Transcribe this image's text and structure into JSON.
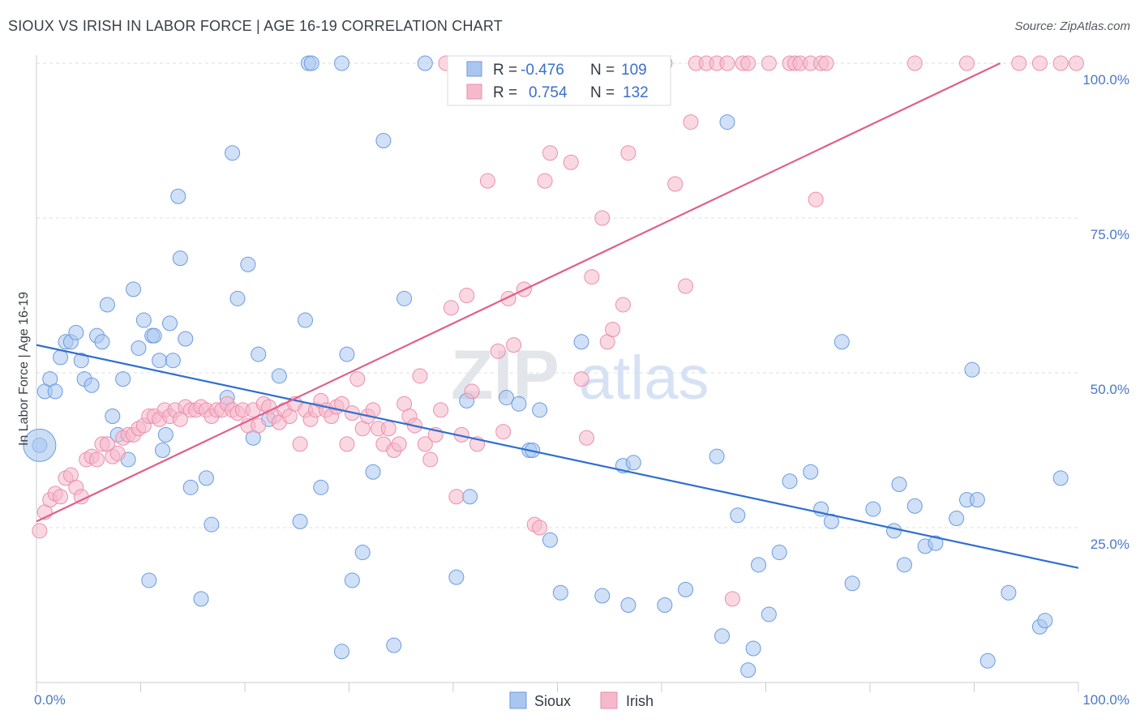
{
  "title": "SIOUX VS IRISH IN LABOR FORCE | AGE 16-19 CORRELATION CHART",
  "source": "Source: ZipAtlas.com",
  "watermark": {
    "zip": "ZIP",
    "atlas": "atlas"
  },
  "colors": {
    "sioux_fill": "#a9c6ef",
    "sioux_stroke": "#6b9be0",
    "sioux_line": "#2f6fcf",
    "irish_fill": "#f6b8cb",
    "irish_stroke": "#ea8fae",
    "irish_line": "#e0608a",
    "tick": "#4a78c4",
    "grid": "#dcdfe4"
  },
  "legend": {
    "rows": [
      {
        "r_label": "R =",
        "r_value": "-0.476",
        "n_label": "N =",
        "n_value": "109"
      },
      {
        "r_label": "R =",
        "r_value": "0.754",
        "n_label": "N =",
        "n_value": "132"
      }
    ]
  },
  "chart_data": {
    "type": "scatter",
    "xlabel": "",
    "ylabel": "In Labor Force | Age 16-19",
    "xlim": [
      0,
      100
    ],
    "ylim": [
      0,
      100
    ],
    "x_tick_labels": [
      "0.0%",
      "100.0%"
    ],
    "y_tick_labels": [
      "25.0%",
      "50.0%",
      "75.0%",
      "100.0%"
    ],
    "y_ticks": [
      25,
      50,
      75,
      100
    ],
    "grid": true,
    "legend_position": "top-center",
    "series": [
      {
        "name": "Sioux",
        "color": "#a9c6ef",
        "trend": {
          "x": [
            0,
            100
          ],
          "y": [
            54.5,
            18.5
          ]
        },
        "points": [
          [
            0.3,
            38.3
          ],
          [
            0.8,
            47
          ],
          [
            1.3,
            49
          ],
          [
            1.8,
            47
          ],
          [
            2.3,
            52.5
          ],
          [
            2.8,
            55
          ],
          [
            3.3,
            55
          ],
          [
            3.8,
            56.5
          ],
          [
            4.3,
            52
          ],
          [
            4.6,
            49
          ],
          [
            5.3,
            48
          ],
          [
            5.8,
            56
          ],
          [
            6.3,
            55
          ],
          [
            6.8,
            61
          ],
          [
            7.3,
            43
          ],
          [
            7.8,
            40
          ],
          [
            8.3,
            49
          ],
          [
            8.8,
            36
          ],
          [
            9.3,
            63.5
          ],
          [
            9.8,
            54
          ],
          [
            10.3,
            58.5
          ],
          [
            10.8,
            16.5
          ],
          [
            11.1,
            56
          ],
          [
            11.3,
            56
          ],
          [
            11.8,
            52
          ],
          [
            12.1,
            37.5
          ],
          [
            12.4,
            40
          ],
          [
            12.8,
            58
          ],
          [
            13.1,
            52
          ],
          [
            13.6,
            78.5
          ],
          [
            13.8,
            68.5
          ],
          [
            14.3,
            55.5
          ],
          [
            14.8,
            31.5
          ],
          [
            15.8,
            13.5
          ],
          [
            16.3,
            33
          ],
          [
            16.8,
            25.5
          ],
          [
            18.3,
            46
          ],
          [
            18.8,
            85.5
          ],
          [
            19.3,
            62
          ],
          [
            20.3,
            67.5
          ],
          [
            20.8,
            39.5
          ],
          [
            21.3,
            53
          ],
          [
            22.3,
            42.5
          ],
          [
            23.3,
            49.5
          ],
          [
            25.3,
            26
          ],
          [
            25.8,
            58.5
          ],
          [
            26.1,
            100
          ],
          [
            26.4,
            100
          ],
          [
            27.3,
            31.5
          ],
          [
            29.3,
            100
          ],
          [
            29.3,
            5
          ],
          [
            29.8,
            53
          ],
          [
            30.3,
            16.5
          ],
          [
            31.3,
            21
          ],
          [
            32.3,
            34
          ],
          [
            33.3,
            87.5
          ],
          [
            34.3,
            6
          ],
          [
            35.3,
            62
          ],
          [
            37.3,
            100
          ],
          [
            40.3,
            17
          ],
          [
            41.3,
            45.5
          ],
          [
            41.6,
            30
          ],
          [
            45.1,
            46
          ],
          [
            46.3,
            45
          ],
          [
            47.3,
            37.5
          ],
          [
            47.6,
            37.5
          ],
          [
            48.3,
            44
          ],
          [
            49.3,
            23
          ],
          [
            50.3,
            14.5
          ],
          [
            52.3,
            55
          ],
          [
            54.3,
            14
          ],
          [
            56.3,
            35
          ],
          [
            56.8,
            12.5
          ],
          [
            57.3,
            35.5
          ],
          [
            60.3,
            12.5
          ],
          [
            62.3,
            15
          ],
          [
            65.3,
            36.5
          ],
          [
            65.8,
            7.5
          ],
          [
            66.3,
            90.5
          ],
          [
            67.3,
            27
          ],
          [
            68.3,
            2
          ],
          [
            68.8,
            5.5
          ],
          [
            69.3,
            19
          ],
          [
            70.3,
            11
          ],
          [
            71.3,
            21
          ],
          [
            72.3,
            32.5
          ],
          [
            74.3,
            34
          ],
          [
            75.3,
            28
          ],
          [
            76.3,
            26
          ],
          [
            77.3,
            55
          ],
          [
            78.3,
            16
          ],
          [
            80.3,
            28
          ],
          [
            82.3,
            24.5
          ],
          [
            82.8,
            32
          ],
          [
            83.3,
            19
          ],
          [
            84.3,
            28.5
          ],
          [
            85.3,
            22
          ],
          [
            86.3,
            22.5
          ],
          [
            88.3,
            26.5
          ],
          [
            89.3,
            29.5
          ],
          [
            89.8,
            50.5
          ],
          [
            90.3,
            29.5
          ],
          [
            91.3,
            3.5
          ],
          [
            93.3,
            14.5
          ],
          [
            96.3,
            9
          ],
          [
            96.8,
            10
          ],
          [
            98.3,
            33
          ]
        ]
      },
      {
        "name": "Irish",
        "color": "#f6b8cb",
        "trend": {
          "x": [
            0,
            92.5
          ],
          "y": [
            26,
            100
          ]
        },
        "points": [
          [
            0.3,
            24.5
          ],
          [
            0.8,
            27.5
          ],
          [
            1.3,
            29.5
          ],
          [
            1.8,
            30.5
          ],
          [
            2.3,
            30
          ],
          [
            2.8,
            33
          ],
          [
            3.3,
            33.5
          ],
          [
            3.8,
            31.5
          ],
          [
            4.3,
            30
          ],
          [
            4.8,
            36
          ],
          [
            5.3,
            36.5
          ],
          [
            5.8,
            36
          ],
          [
            6.3,
            38.5
          ],
          [
            6.8,
            38.5
          ],
          [
            7.3,
            36.5
          ],
          [
            7.8,
            37
          ],
          [
            8.3,
            39.5
          ],
          [
            8.8,
            40
          ],
          [
            9.3,
            40
          ],
          [
            9.8,
            41
          ],
          [
            10.3,
            41.5
          ],
          [
            10.8,
            43
          ],
          [
            11.3,
            43
          ],
          [
            11.8,
            42.5
          ],
          [
            12.3,
            44
          ],
          [
            12.8,
            43
          ],
          [
            13.3,
            44
          ],
          [
            13.8,
            42.5
          ],
          [
            14.3,
            44.5
          ],
          [
            14.8,
            44
          ],
          [
            15.3,
            44
          ],
          [
            15.8,
            44.5
          ],
          [
            16.3,
            44
          ],
          [
            16.8,
            43
          ],
          [
            17.3,
            44
          ],
          [
            17.8,
            44
          ],
          [
            18.3,
            45
          ],
          [
            18.8,
            44
          ],
          [
            19.3,
            43.5
          ],
          [
            19.8,
            44
          ],
          [
            20.3,
            41.5
          ],
          [
            20.8,
            44
          ],
          [
            21.3,
            41.5
          ],
          [
            21.8,
            45
          ],
          [
            22.3,
            44.5
          ],
          [
            22.8,
            43
          ],
          [
            23.3,
            42
          ],
          [
            23.8,
            44
          ],
          [
            24.3,
            43
          ],
          [
            24.8,
            45
          ],
          [
            25.3,
            38.5
          ],
          [
            25.8,
            44
          ],
          [
            26.3,
            42.5
          ],
          [
            26.8,
            44
          ],
          [
            27.3,
            45.5
          ],
          [
            27.8,
            44
          ],
          [
            28.3,
            43
          ],
          [
            28.8,
            44.5
          ],
          [
            29.3,
            45
          ],
          [
            29.8,
            38.5
          ],
          [
            30.3,
            43.5
          ],
          [
            30.8,
            49
          ],
          [
            31.3,
            41
          ],
          [
            31.8,
            43
          ],
          [
            32.3,
            44
          ],
          [
            32.8,
            41
          ],
          [
            33.3,
            38.5
          ],
          [
            33.8,
            41
          ],
          [
            34.3,
            37.5
          ],
          [
            34.8,
            38.5
          ],
          [
            35.3,
            45
          ],
          [
            35.8,
            43
          ],
          [
            36.3,
            41.5
          ],
          [
            36.8,
            49.5
          ],
          [
            37.3,
            38.5
          ],
          [
            37.8,
            36
          ],
          [
            38.3,
            40
          ],
          [
            38.8,
            44
          ],
          [
            39.3,
            100
          ],
          [
            39.8,
            60.5
          ],
          [
            40.3,
            30
          ],
          [
            40.8,
            40
          ],
          [
            41.3,
            62.5
          ],
          [
            41.8,
            47
          ],
          [
            42.3,
            38.5
          ],
          [
            42.8,
            100
          ],
          [
            43.3,
            81
          ],
          [
            43.8,
            100
          ],
          [
            44.3,
            53.5
          ],
          [
            44.8,
            40.5
          ],
          [
            45.3,
            62
          ],
          [
            45.8,
            54.5
          ],
          [
            46.3,
            100
          ],
          [
            46.8,
            63.5
          ],
          [
            47.3,
            100
          ],
          [
            47.8,
            25.5
          ],
          [
            48.3,
            25
          ],
          [
            48.8,
            81
          ],
          [
            49.3,
            85.5
          ],
          [
            50.3,
            100
          ],
          [
            51.3,
            84
          ],
          [
            52.3,
            49
          ],
          [
            52.8,
            39.5
          ],
          [
            53.3,
            65.5
          ],
          [
            53.8,
            100
          ],
          [
            54.3,
            75
          ],
          [
            54.8,
            55
          ],
          [
            55.3,
            57
          ],
          [
            55.8,
            100
          ],
          [
            56.3,
            61
          ],
          [
            56.8,
            85.5
          ],
          [
            58.3,
            100
          ],
          [
            60.3,
            100
          ],
          [
            61.3,
            80.5
          ],
          [
            62.3,
            64
          ],
          [
            62.8,
            90.5
          ],
          [
            63.3,
            100
          ],
          [
            64.3,
            100
          ],
          [
            65.3,
            100
          ],
          [
            66.3,
            100
          ],
          [
            66.8,
            13.5
          ],
          [
            67.8,
            100
          ],
          [
            68.3,
            100
          ],
          [
            70.3,
            100
          ],
          [
            72.3,
            100
          ],
          [
            72.8,
            100
          ],
          [
            73.3,
            100
          ],
          [
            74.3,
            100
          ],
          [
            74.8,
            78
          ],
          [
            75.3,
            100
          ],
          [
            75.8,
            100
          ],
          [
            84.3,
            100
          ],
          [
            89.3,
            100
          ],
          [
            94.3,
            100
          ],
          [
            96.3,
            100
          ],
          [
            98.3,
            100
          ],
          [
            99.8,
            100
          ]
        ]
      }
    ]
  },
  "bottom_legend": [
    {
      "label": "Sioux"
    },
    {
      "label": "Irish"
    }
  ]
}
